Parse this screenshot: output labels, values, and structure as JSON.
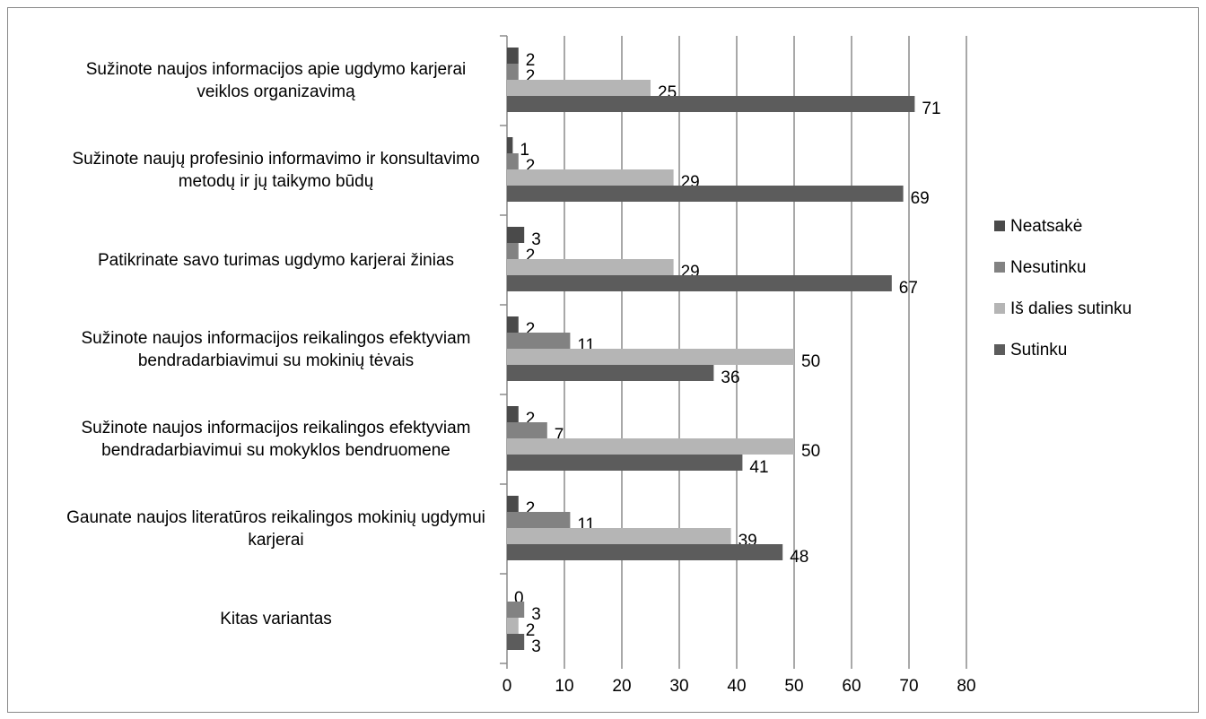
{
  "chart_data": {
    "type": "bar",
    "orientation": "horizontal",
    "categories": [
      "Sužinote naujos informacijos apie ugdymo karjerai veiklos organizavimą",
      "Sužinote naujų profesinio informavimo ir konsultavimo metodų ir jų taikymo būdų",
      "Patikrinate savo turimas ugdymo karjerai žinias",
      "Sužinote naujos informacijos reikalingos efektyviam bendradarbiavimui su mokinių tėvais",
      "Sužinote naujos informacijos reikalingos efektyviam bendradarbiavimui su mokyklos bendruomene",
      "Gaunate naujos literatūros reikalingos mokinių ugdymui karjerai",
      "Kitas variantas"
    ],
    "series": [
      {
        "name": "Neatsakė",
        "color": "#4a4a4a",
        "values": [
          2,
          1,
          3,
          2,
          2,
          2,
          0
        ]
      },
      {
        "name": "Nesutinku",
        "color": "#828282",
        "values": [
          2,
          2,
          2,
          11,
          7,
          11,
          3
        ]
      },
      {
        "name": "Iš dalies sutinku",
        "color": "#b5b5b5",
        "values": [
          25,
          29,
          29,
          50,
          50,
          39,
          2
        ]
      },
      {
        "name": "Sutinku",
        "color": "#5c5c5c",
        "values": [
          71,
          69,
          67,
          36,
          41,
          48,
          3
        ]
      }
    ],
    "xlim": [
      0,
      80
    ],
    "xticks": [
      0,
      10,
      20,
      30,
      40,
      50,
      60,
      70,
      80
    ],
    "grid": true,
    "legend": "right"
  }
}
